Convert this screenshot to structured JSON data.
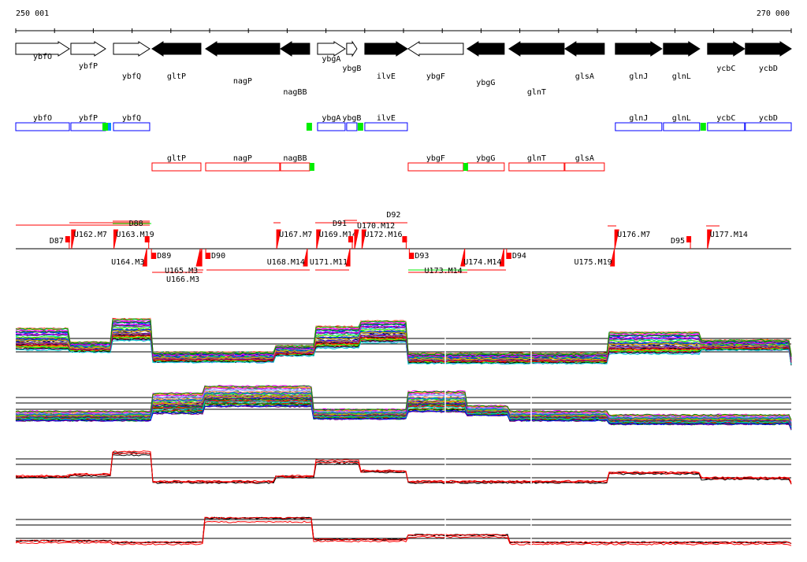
{
  "ruler": {
    "start_label": "250 001",
    "end_label": "270 000",
    "start": 250001,
    "end": 270000
  },
  "genes": [
    {
      "name": "ybfO",
      "start": 250001,
      "end": 251383,
      "strand": "+",
      "filled": false
    },
    {
      "name": "ybfP",
      "start": 251423,
      "end": 252317,
      "strand": "+",
      "filled": false
    },
    {
      "name": "ybfQ",
      "start": 252521,
      "end": 253455,
      "strand": "+",
      "filled": false
    },
    {
      "name": "gltP",
      "start": 253516,
      "end": 254776,
      "strand": "-",
      "filled": true
    },
    {
      "name": "nagP",
      "start": 254898,
      "end": 256808,
      "strand": "-",
      "filled": true
    },
    {
      "name": "nagBB",
      "start": 256829,
      "end": 257580,
      "strand": "-",
      "filled": true
    },
    {
      "name": "ybgA",
      "start": 257784,
      "end": 258495,
      "strand": "+",
      "filled": false
    },
    {
      "name": "ybgB",
      "start": 258535,
      "end": 258800,
      "strand": "+",
      "filled": false
    },
    {
      "name": "ilvE",
      "start": 259003,
      "end": 260100,
      "strand": "+",
      "filled": true
    },
    {
      "name": "ybgF",
      "start": 260121,
      "end": 261543,
      "strand": "-",
      "filled": false
    },
    {
      "name": "ybgG",
      "start": 261644,
      "end": 262599,
      "strand": "-",
      "filled": true
    },
    {
      "name": "glnT",
      "start": 262721,
      "end": 264144,
      "strand": "-",
      "filled": true
    },
    {
      "name": "glsA",
      "start": 264164,
      "end": 265180,
      "strand": "-",
      "filled": true
    },
    {
      "name": "glnJ",
      "start": 265464,
      "end": 266663,
      "strand": "+",
      "filled": true
    },
    {
      "name": "glnL",
      "start": 266704,
      "end": 267638,
      "strand": "+",
      "filled": true
    },
    {
      "name": "ycbC",
      "start": 267842,
      "end": 268797,
      "strand": "+",
      "filled": true
    },
    {
      "name": "ycbD",
      "start": 268817,
      "end": 270000,
      "strand": "+",
      "filled": true
    }
  ],
  "operons_forward": [
    {
      "name": "ybfO",
      "start": 250001,
      "end": 251383
    },
    {
      "name": "ybfP",
      "start": 251423,
      "end": 252317
    },
    {
      "name": "ybfQ",
      "start": 252521,
      "end": 253455
    },
    {
      "name": "ybgA",
      "start": 257784,
      "end": 258495
    },
    {
      "name": "ybgB",
      "start": 258535,
      "end": 258800
    },
    {
      "name": "ilvE",
      "start": 259003,
      "end": 260100
    },
    {
      "name": "glnJ",
      "start": 265464,
      "end": 266663
    },
    {
      "name": "glnL",
      "start": 266704,
      "end": 267638
    },
    {
      "name": "ycbC",
      "start": 267842,
      "end": 268797
    },
    {
      "name": "ycbD",
      "start": 268817,
      "end": 270000
    }
  ],
  "operons_reverse": [
    {
      "name": "gltP",
      "start": 253516,
      "end": 254776
    },
    {
      "name": "nagP",
      "start": 254898,
      "end": 256808
    },
    {
      "name": "nagBB",
      "start": 256829,
      "end": 257580
    },
    {
      "name": "ybgF",
      "start": 260121,
      "end": 261543
    },
    {
      "name": "ybgG",
      "start": 261644,
      "end": 262599
    },
    {
      "name": "glnT",
      "start": 262721,
      "end": 264144
    },
    {
      "name": "glsA",
      "start": 264164,
      "end": 265180
    }
  ],
  "promoters_forward": [
    252317,
    257580,
    258900,
    267740
  ],
  "promoters_reverse": [
    257580,
    261543
  ],
  "features_above": [
    {
      "label": "D87",
      "pos": 251400
    },
    {
      "label": "U162.M7",
      "pos": 251440
    },
    {
      "label": "U163.M19",
      "pos": 252530
    },
    {
      "label": "D88",
      "pos": 253450
    },
    {
      "label": "U167.M7",
      "pos": 256730
    },
    {
      "label": "U169.M14",
      "pos": 257760
    },
    {
      "label": "U170.M12",
      "pos": 258740
    },
    {
      "label": "D91",
      "pos": 258700
    },
    {
      "label": "U172.M16",
      "pos": 258930
    },
    {
      "label": "D92",
      "pos": 260090
    },
    {
      "label": "U176.M7",
      "pos": 265450
    },
    {
      "label": "D95",
      "pos": 267420
    },
    {
      "label": "U177.M14",
      "pos": 267840
    }
  ],
  "features_below": [
    {
      "label": "D89",
      "pos": 253500
    },
    {
      "label": "U164.M3",
      "pos": 253380
    },
    {
      "label": "U165.M3",
      "pos": 254760
    },
    {
      "label": "U166.M3",
      "pos": 254800
    },
    {
      "label": "D90",
      "pos": 254900
    },
    {
      "label": "U168.M14",
      "pos": 257520
    },
    {
      "label": "U171.M11",
      "pos": 258620
    },
    {
      "label": "D93",
      "pos": 260150
    },
    {
      "label": "U173.M14",
      "pos": 261580
    },
    {
      "label": "U174.M14",
      "pos": 262590
    },
    {
      "label": "D94",
      "pos": 262660
    },
    {
      "label": "U175.M19",
      "pos": 265440
    }
  ],
  "colors": {
    "forward": "#0000ff",
    "reverse": "#ff0000",
    "promoter": "#00ee00",
    "feature": "#ff0000"
  }
}
